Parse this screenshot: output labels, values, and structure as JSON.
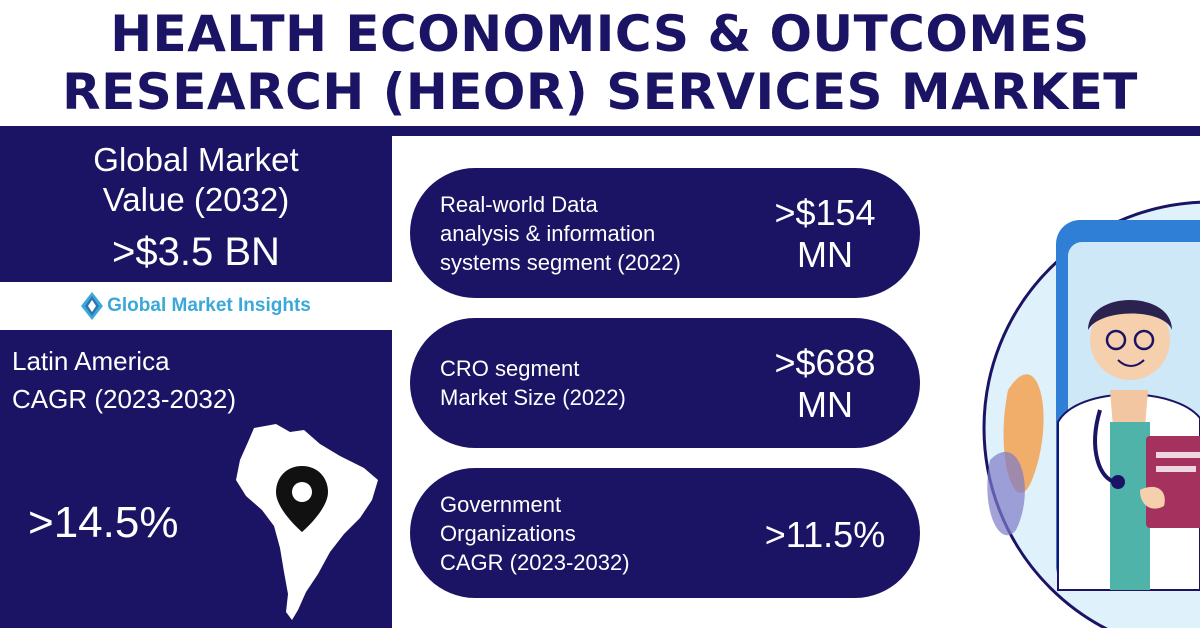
{
  "title": {
    "line1": "HEALTH ECONOMICS & OUTCOMES",
    "line2": "RESEARCH (HEOR) SERVICES MARKET"
  },
  "market_value": {
    "label_line1": "Global Market",
    "label_line2": "Value (2032)",
    "value": ">$3.5 BN"
  },
  "logo": {
    "text": "Global Market Insights",
    "icon": "diamond-logo-icon"
  },
  "latin_america": {
    "label_line1": "Latin America",
    "label_line2": "CAGR (2023-2032)",
    "value": ">14.5%",
    "icon": "map-pin-icon"
  },
  "stats": [
    {
      "label_lines": [
        "Real-world Data",
        "analysis & information",
        "systems segment (2022)"
      ],
      "value_lines": [
        ">$154",
        "MN"
      ]
    },
    {
      "label_lines": [
        "CRO segment",
        "Market Size (2022)"
      ],
      "value_lines": [
        ">$688",
        "MN"
      ]
    },
    {
      "label_lines": [
        "Government",
        "Organizations",
        "CAGR (2023-2032)"
      ],
      "value_lines": [
        ">11.5%"
      ]
    }
  ],
  "colors": {
    "navy": "#1b1464",
    "logo_blue": "#3aa9d9",
    "illustration_bg": "#dff1fb"
  }
}
